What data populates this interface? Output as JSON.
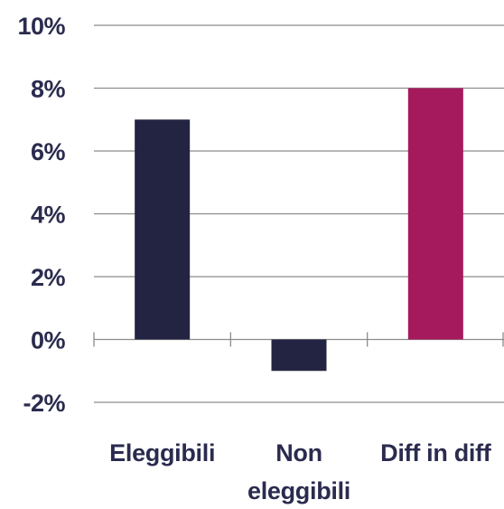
{
  "chart_data": {
    "type": "bar",
    "categories": [
      [
        "Eleggibili"
      ],
      [
        "Non",
        "eleggibili"
      ],
      [
        "Diff in diff"
      ]
    ],
    "values": [
      7,
      -1,
      8
    ],
    "bar_colors": [
      "#232342",
      "#232342",
      "#A51A5C"
    ],
    "ylim": [
      -2,
      10
    ],
    "y_ticks": [
      10,
      8,
      6,
      4,
      2,
      0,
      -2
    ],
    "y_tick_labels": [
      "10%",
      "8%",
      "6%",
      "4%",
      "2%",
      "0%",
      "-2%"
    ],
    "grid": true,
    "title": "",
    "xlabel": "",
    "ylabel": ""
  },
  "colors": {
    "text": "#2B2B4F",
    "grid": "#8C8C8C",
    "axis": "#8C8C8C"
  }
}
